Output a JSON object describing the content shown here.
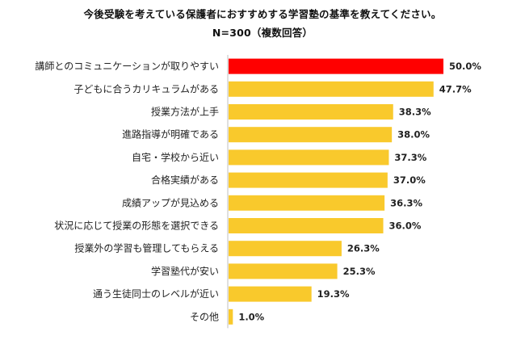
{
  "chart_data": {
    "type": "bar",
    "orientation": "horizontal",
    "title": "今後受験を考えている保護者におすすめする学習塾の基準を教えてください。",
    "subtitle": "N=300（複数回答）",
    "categories": [
      "講師とのコミュニケーションが取りやすい",
      "子どもに合うカリキュラムがある",
      "授業方法が上手",
      "進路指導が明確である",
      "自宅・学校から近い",
      "合格実績がある",
      "成績アップが見込める",
      "状況に応じて授業の形態を選択できる",
      "授業外の学習も管理してもらえる",
      "学習塾代が安い",
      "通う生徒同士のレベルが近い",
      "その他"
    ],
    "values": [
      50.0,
      47.7,
      38.3,
      38.0,
      37.3,
      37.0,
      36.3,
      36.0,
      26.3,
      25.3,
      19.3,
      1.0
    ],
    "value_labels": [
      "50.0%",
      "47.7%",
      "38.3%",
      "38.0%",
      "37.3%",
      "37.0%",
      "36.3%",
      "36.0%",
      "26.3%",
      "25.3%",
      "19.3%",
      "1.0%"
    ],
    "unit": "%",
    "xlim": [
      0,
      50
    ],
    "grid": false,
    "legend": "none",
    "colors": {
      "highlight": "#FF0000",
      "default": "#F9C92C",
      "axis": "#BFBFBF"
    },
    "highlight_index": 0
  }
}
